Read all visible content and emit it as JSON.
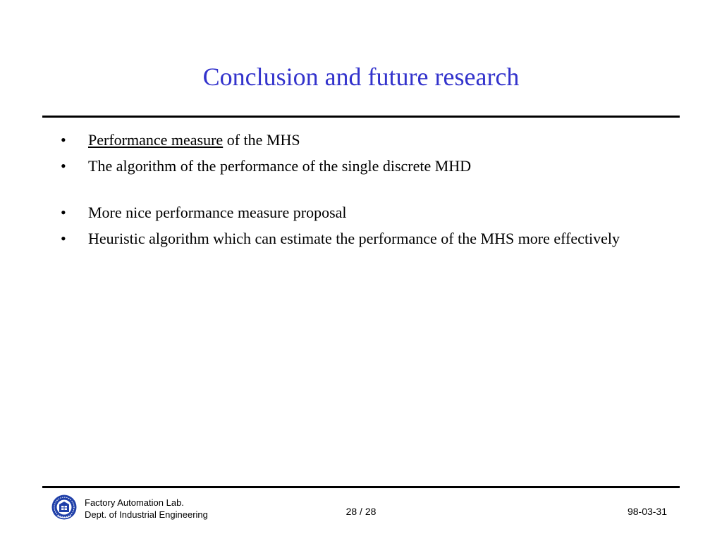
{
  "slide": {
    "title": "Conclusion and future research"
  },
  "bullets": [
    {
      "symbol": "•",
      "underlined": "Performance measure",
      "rest": " of the MHS"
    },
    {
      "symbol": "•",
      "text": "The algorithm of the performance of the single discrete MHD"
    },
    {
      "symbol": "•",
      "text": "More nice performance measure proposal"
    },
    {
      "symbol": "•",
      "text": "Heuristic algorithm which can estimate the performance of the MHS more effectively"
    }
  ],
  "footer": {
    "lab_line1": "Factory Automation Lab.",
    "lab_line2": "Dept. of Industrial Engineering",
    "page": "28 / 28",
    "date": "98-03-31",
    "logo_icon": "university-seal-icon"
  },
  "colors": {
    "title": "#3333cc",
    "text": "#000000",
    "logo": "#1f3fa8"
  }
}
